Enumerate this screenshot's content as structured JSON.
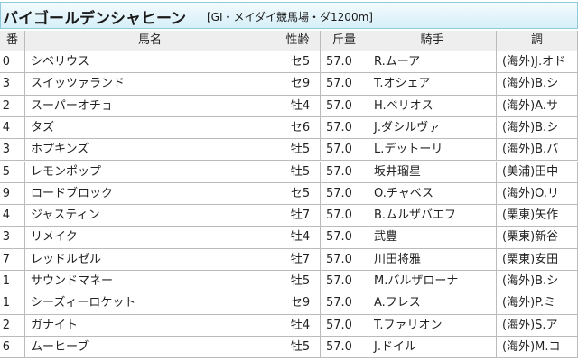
{
  "header": {
    "title": "バイゴールデンシャヒーン",
    "subtitle": "[GI・メイダイ競馬場・ダ1200m]"
  },
  "table": {
    "columns": [
      "番",
      "馬名",
      "性齢",
      "斤量",
      "騎手",
      "調"
    ],
    "rows": [
      [
        "0",
        "シベリウス",
        "セ5",
        "57.0",
        "R.ムーア",
        "(海外)J.オド"
      ],
      [
        "3",
        "スイッツァランド",
        "セ9",
        "57.0",
        "T.オシェア",
        "(海外)B.シ"
      ],
      [
        "2",
        "スーパーオチョ",
        "牡4",
        "57.0",
        "H.ベリオス",
        "(海外)A.サ"
      ],
      [
        "4",
        "タズ",
        "セ6",
        "57.0",
        "J.ダシルヴァ",
        "(海外)B.シ"
      ],
      [
        "3",
        "ホプキンズ",
        "牡5",
        "57.0",
        "L.デットーリ",
        "(海外)B.バ"
      ],
      [
        "5",
        "レモンポップ",
        "牡5",
        "57.0",
        "坂井瑠星",
        "(美浦)田中"
      ],
      [
        "9",
        "ロードブロック",
        "セ5",
        "57.0",
        "O.チャベス",
        "(海外)O.リ"
      ],
      [
        "4",
        "ジャスティン",
        "牡7",
        "57.0",
        "B.ムルザバエフ",
        "(栗東)矢作"
      ],
      [
        "3",
        "リメイク",
        "牡4",
        "57.0",
        "武豊",
        "(栗東)新谷"
      ],
      [
        "7",
        "レッドルゼル",
        "牡7",
        "57.0",
        "川田将雅",
        "(栗東)安田"
      ],
      [
        "1",
        "サウンドマネー",
        "牡5",
        "57.0",
        "M.バルザローナ",
        "(海外)B.シ"
      ],
      [
        "1",
        "シーズィーロケット",
        "セ9",
        "57.0",
        "A.フレス",
        "(海外)P.ミ"
      ],
      [
        "2",
        "ガナイト",
        "牡4",
        "57.0",
        "T.ファリオン",
        "(海外)S.ア"
      ],
      [
        "6",
        "ムーヒーブ",
        "牡5",
        "57.0",
        "J.ドイル",
        "(海外)M.コ"
      ]
    ]
  }
}
